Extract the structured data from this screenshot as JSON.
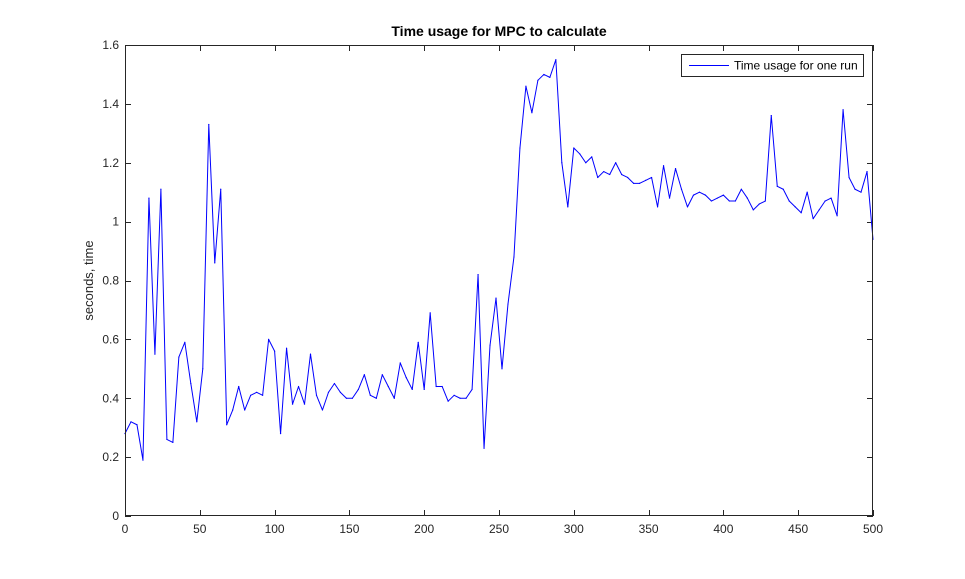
{
  "chart_data": {
    "type": "line",
    "title": "Time usage for MPC to calculate",
    "xlabel": "",
    "ylabel": "seconds, time",
    "xlim": [
      0,
      500
    ],
    "ylim": [
      0,
      1.6
    ],
    "xticks": [
      0,
      50,
      100,
      150,
      200,
      250,
      300,
      350,
      400,
      450,
      500
    ],
    "yticks": [
      0,
      0.2,
      0.4,
      0.6,
      0.8,
      1,
      1.2,
      1.4,
      1.6
    ],
    "grid": false,
    "legend_position": "top-right",
    "series": [
      {
        "name": "Time usage for one run",
        "color": "#0000ff",
        "x": [
          0,
          4,
          8,
          12,
          16,
          20,
          24,
          28,
          32,
          36,
          40,
          44,
          48,
          52,
          56,
          60,
          64,
          68,
          72,
          76,
          80,
          84,
          88,
          92,
          96,
          100,
          104,
          108,
          112,
          116,
          120,
          124,
          128,
          132,
          136,
          140,
          144,
          148,
          152,
          156,
          160,
          164,
          168,
          172,
          176,
          180,
          184,
          188,
          192,
          196,
          200,
          204,
          208,
          212,
          216,
          220,
          224,
          228,
          232,
          236,
          240,
          244,
          248,
          252,
          256,
          260,
          264,
          268,
          272,
          276,
          280,
          284,
          288,
          292,
          296,
          300,
          304,
          308,
          312,
          316,
          320,
          324,
          328,
          332,
          336,
          340,
          344,
          348,
          352,
          356,
          360,
          364,
          368,
          372,
          376,
          380,
          384,
          388,
          392,
          396,
          400,
          404,
          408,
          412,
          416,
          420,
          424,
          428,
          432,
          436,
          440,
          444,
          448,
          452,
          456,
          460,
          464,
          468,
          472,
          476,
          480,
          484,
          488,
          492,
          496,
          500
        ],
        "y": [
          0.28,
          0.32,
          0.31,
          0.19,
          1.08,
          0.55,
          1.11,
          0.26,
          0.25,
          0.54,
          0.59,
          0.45,
          0.32,
          0.5,
          1.33,
          0.86,
          1.11,
          0.31,
          0.36,
          0.44,
          0.36,
          0.41,
          0.42,
          0.41,
          0.6,
          0.56,
          0.28,
          0.57,
          0.38,
          0.44,
          0.38,
          0.55,
          0.41,
          0.36,
          0.42,
          0.45,
          0.42,
          0.4,
          0.4,
          0.43,
          0.48,
          0.41,
          0.4,
          0.48,
          0.44,
          0.4,
          0.52,
          0.47,
          0.43,
          0.59,
          0.43,
          0.69,
          0.44,
          0.44,
          0.39,
          0.41,
          0.4,
          0.4,
          0.43,
          0.82,
          0.23,
          0.58,
          0.74,
          0.5,
          0.72,
          0.88,
          1.25,
          1.46,
          1.37,
          1.48,
          1.5,
          1.49,
          1.55,
          1.2,
          1.05,
          1.25,
          1.23,
          1.2,
          1.22,
          1.15,
          1.17,
          1.16,
          1.2,
          1.16,
          1.15,
          1.13,
          1.13,
          1.14,
          1.15,
          1.05,
          1.19,
          1.08,
          1.18,
          1.11,
          1.05,
          1.09,
          1.1,
          1.09,
          1.07,
          1.08,
          1.09,
          1.07,
          1.07,
          1.11,
          1.08,
          1.04,
          1.06,
          1.07,
          1.36,
          1.12,
          1.11,
          1.07,
          1.05,
          1.03,
          1.1,
          1.01,
          1.04,
          1.07,
          1.08,
          1.02,
          1.38,
          1.15,
          1.11,
          1.1,
          1.17,
          0.94
        ]
      }
    ]
  }
}
